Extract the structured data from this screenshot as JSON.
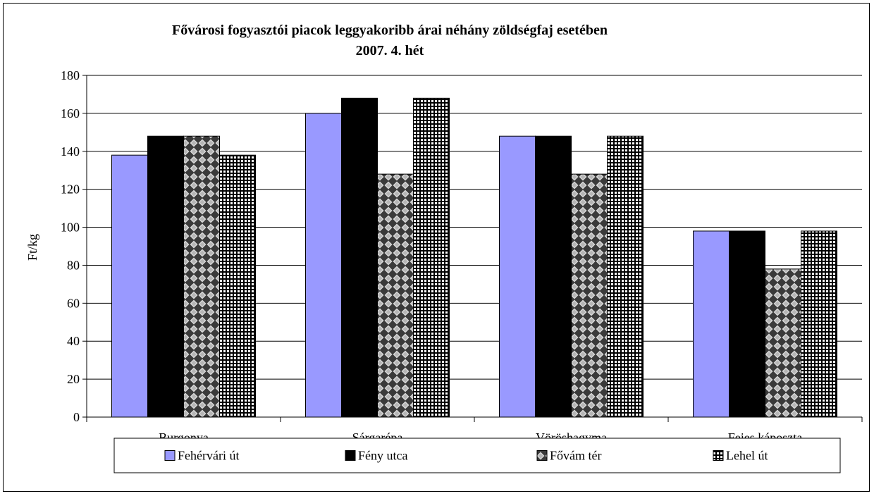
{
  "chart_data": {
    "type": "bar",
    "title": "Fővárosi fogyasztói piacok leggyakoribb árai néhány zöldségfaj esetében",
    "subtitle": "2007. 4. hét",
    "xlabel": "",
    "ylabel": "Ft/kg",
    "ylim": [
      0,
      180
    ],
    "yticks": [
      0,
      20,
      40,
      60,
      80,
      100,
      120,
      140,
      160,
      180
    ],
    "grid": true,
    "legend_position": "bottom",
    "categories": [
      "Burgonya",
      "Sárgarépa",
      "Vöröshagyma",
      "Fejes káposzta"
    ],
    "series": [
      {
        "name": "Fehérvári út",
        "values": [
          138,
          160,
          148,
          98
        ],
        "color": "#9999ff",
        "pattern": "solid"
      },
      {
        "name": "Fény utca",
        "values": [
          148,
          168,
          148,
          98
        ],
        "color": "#000000",
        "pattern": "solid"
      },
      {
        "name": "Fővám tér",
        "values": [
          148,
          128,
          128,
          78
        ],
        "color": "#808080",
        "pattern": "checker-diamond"
      },
      {
        "name": "Lehel út",
        "values": [
          138,
          168,
          148,
          98
        ],
        "color": "#000000",
        "pattern": "grid"
      }
    ]
  }
}
